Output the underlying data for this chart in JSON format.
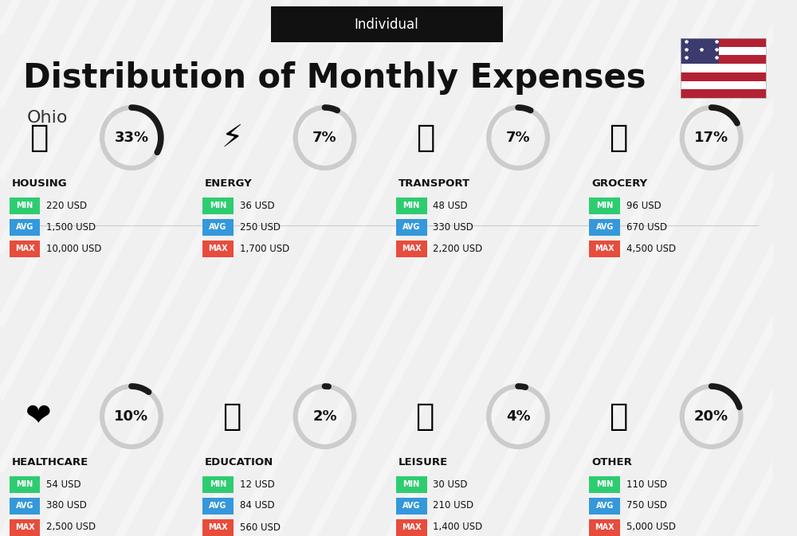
{
  "title": "Distribution of Monthly Expenses",
  "subtitle": "Individual",
  "location": "Ohio",
  "bg_color": "#f0f0f0",
  "categories": [
    {
      "name": "HOUSING",
      "pct": 33,
      "min_val": "220 USD",
      "avg_val": "1,500 USD",
      "max_val": "10,000 USD",
      "emoji": "🏢",
      "row": 0,
      "col": 0
    },
    {
      "name": "ENERGY",
      "pct": 7,
      "min_val": "36 USD",
      "avg_val": "250 USD",
      "max_val": "1,700 USD",
      "emoji": "⚡",
      "row": 0,
      "col": 1
    },
    {
      "name": "TRANSPORT",
      "pct": 7,
      "min_val": "48 USD",
      "avg_val": "330 USD",
      "max_val": "2,200 USD",
      "emoji": "🚌",
      "row": 0,
      "col": 2
    },
    {
      "name": "GROCERY",
      "pct": 17,
      "min_val": "96 USD",
      "avg_val": "670 USD",
      "max_val": "4,500 USD",
      "emoji": "🛒",
      "row": 0,
      "col": 3
    },
    {
      "name": "HEALTHCARE",
      "pct": 10,
      "min_val": "54 USD",
      "avg_val": "380 USD",
      "max_val": "2,500 USD",
      "emoji": "❤️",
      "row": 1,
      "col": 0
    },
    {
      "name": "EDUCATION",
      "pct": 2,
      "min_val": "12 USD",
      "avg_val": "84 USD",
      "max_val": "560 USD",
      "emoji": "🎓",
      "row": 1,
      "col": 1
    },
    {
      "name": "LEISURE",
      "pct": 4,
      "min_val": "30 USD",
      "avg_val": "210 USD",
      "max_val": "1,400 USD",
      "emoji": "🛍️",
      "row": 1,
      "col": 2
    },
    {
      "name": "OTHER",
      "pct": 20,
      "min_val": "110 USD",
      "avg_val": "750 USD",
      "max_val": "5,000 USD",
      "emoji": "💰",
      "row": 1,
      "col": 3
    }
  ],
  "min_color": "#2ecc71",
  "avg_color": "#3498db",
  "max_color": "#e74c3c",
  "label_color": "#ffffff",
  "text_color": "#111111",
  "donut_filled_color": "#1a1a1a",
  "donut_empty_color": "#cccccc",
  "donut_size": 0.07
}
